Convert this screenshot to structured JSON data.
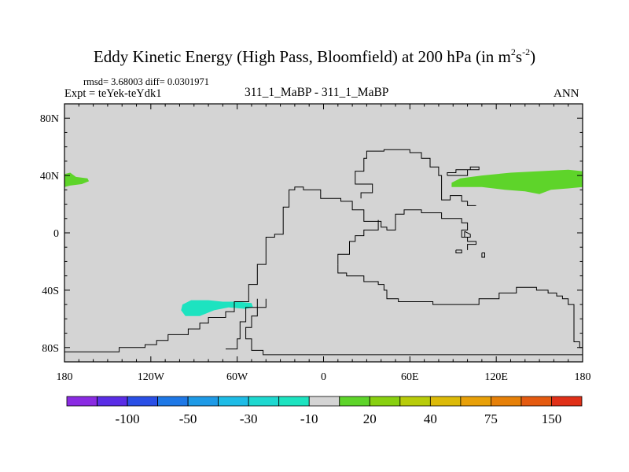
{
  "title": {
    "main": "Eddy Kinetic Energy (High Pass, Bloomfield) at 200 hPa (in m",
    "sup1": "2",
    "mid": "s",
    "sup2": "-2",
    "end": ")"
  },
  "header": {
    "rmsd": "rmsd= 3.68003 diff= 0.0301971",
    "expt": "Expt = teYek-teYdk1",
    "cases": "311_1_MaBP - 311_1_MaBP",
    "season": "ANN"
  },
  "colors": {
    "background_fill": "#d4d4d4",
    "positive_contour": "#5ed42a",
    "negative_contour": "#1de3c0",
    "outline": "#000000"
  },
  "chart_data": {
    "type": "contour_map",
    "projection": "cylindrical-equidistant",
    "xlim": [
      -180,
      180
    ],
    "ylim": [
      -90,
      90
    ],
    "xticks": [
      {
        "value": -180,
        "label": "180"
      },
      {
        "value": -120,
        "label": "120W"
      },
      {
        "value": -60,
        "label": "60W"
      },
      {
        "value": 0,
        "label": "0"
      },
      {
        "value": 60,
        "label": "60E"
      },
      {
        "value": 120,
        "label": "120E"
      },
      {
        "value": 180,
        "label": "180"
      }
    ],
    "yticks": [
      {
        "value": 80,
        "label": "80N"
      },
      {
        "value": 40,
        "label": "40N"
      },
      {
        "value": 0,
        "label": "0"
      },
      {
        "value": -40,
        "label": "40S"
      },
      {
        "value": -80,
        "label": "80S"
      }
    ],
    "colorbar": {
      "colors": [
        "#8a2be2",
        "#5a2de6",
        "#2a4fe6",
        "#1e78e6",
        "#1e9ae6",
        "#1ebce6",
        "#1ed8d0",
        "#1de3c0",
        "#d4d4d4",
        "#5ed42a",
        "#88d010",
        "#b8cc0a",
        "#dcba08",
        "#e8a008",
        "#e68008",
        "#e45a10",
        "#e03018"
      ],
      "labels": [
        {
          "after_index": 1,
          "text": "-100"
        },
        {
          "after_index": 3,
          "text": "-50"
        },
        {
          "after_index": 5,
          "text": "-30"
        },
        {
          "after_index": 7,
          "text": "-10"
        },
        {
          "after_index": 9,
          "text": "20"
        },
        {
          "after_index": 11,
          "text": "40"
        },
        {
          "after_index": 13,
          "text": "75"
        },
        {
          "after_index": 15,
          "text": "150"
        }
      ]
    },
    "filled_regions": [
      {
        "name": "positive-region-west",
        "color_index": 9,
        "lonlat": [
          [
            -180,
            41
          ],
          [
            -176,
            42
          ],
          [
            -172,
            39
          ],
          [
            -164,
            38
          ],
          [
            -163,
            36
          ],
          [
            -168,
            34
          ],
          [
            -176,
            33
          ],
          [
            -180,
            32
          ]
        ]
      },
      {
        "name": "positive-region-east",
        "color_index": 9,
        "lonlat": [
          [
            89,
            35
          ],
          [
            95,
            38
          ],
          [
            110,
            40
          ],
          [
            130,
            42
          ],
          [
            150,
            43
          ],
          [
            170,
            44
          ],
          [
            180,
            43
          ],
          [
            180,
            32
          ],
          [
            170,
            31
          ],
          [
            158,
            30
          ],
          [
            150,
            27
          ],
          [
            140,
            29
          ],
          [
            126,
            30
          ],
          [
            110,
            32
          ],
          [
            95,
            32
          ],
          [
            89,
            32
          ]
        ]
      },
      {
        "name": "negative-region-south",
        "color_index": 7,
        "lonlat": [
          [
            -98,
            -50
          ],
          [
            -92,
            -47
          ],
          [
            -80,
            -47
          ],
          [
            -70,
            -48
          ],
          [
            -60,
            -48
          ],
          [
            -50,
            -49
          ],
          [
            -49,
            -52
          ],
          [
            -54,
            -53
          ],
          [
            -66,
            -52
          ],
          [
            -76,
            -54
          ],
          [
            -86,
            -58
          ],
          [
            -96,
            -58
          ],
          [
            -99,
            -54
          ]
        ]
      }
    ],
    "land_outlines": [
      {
        "name": "coastline-main",
        "lonlat": [
          [
            -180,
            -83
          ],
          [
            -142,
            -83
          ],
          [
            -142,
            -80
          ],
          [
            -124,
            -80
          ],
          [
            -124,
            -78
          ],
          [
            -116,
            -78
          ],
          [
            -116,
            -75
          ],
          [
            -108,
            -75
          ],
          [
            -108,
            -71
          ],
          [
            -94,
            -71
          ],
          [
            -94,
            -67
          ],
          [
            -86,
            -67
          ],
          [
            -86,
            -63
          ],
          [
            -80,
            -63
          ],
          [
            -80,
            -59
          ],
          [
            -68,
            -59
          ],
          [
            -68,
            -55
          ],
          [
            -62,
            -55
          ],
          [
            -62,
            -48
          ],
          [
            -52,
            -48
          ],
          [
            -52,
            -36
          ],
          [
            -46,
            -36
          ],
          [
            -46,
            -22
          ],
          [
            -40,
            -22
          ],
          [
            -40,
            -3
          ],
          [
            -34,
            -3
          ],
          [
            -34,
            -1
          ],
          [
            -28,
            -1
          ],
          [
            -28,
            18
          ],
          [
            -24,
            18
          ],
          [
            -24,
            30
          ],
          [
            -20,
            30
          ],
          [
            -20,
            32
          ],
          [
            -14,
            32
          ],
          [
            -14,
            30
          ],
          [
            -2,
            30
          ],
          [
            -2,
            24
          ],
          [
            12,
            24
          ],
          [
            12,
            22
          ],
          [
            20,
            22
          ],
          [
            20,
            16
          ],
          [
            28,
            16
          ],
          [
            28,
            8
          ],
          [
            40,
            8
          ],
          [
            40,
            4
          ],
          [
            44,
            4
          ],
          [
            44,
            2
          ],
          [
            50,
            2
          ],
          [
            50,
            13
          ],
          [
            56,
            13
          ],
          [
            56,
            16
          ],
          [
            68,
            16
          ],
          [
            68,
            14
          ],
          [
            82,
            14
          ],
          [
            82,
            10
          ],
          [
            96,
            10
          ],
          [
            96,
            7
          ],
          [
            100,
            7
          ],
          [
            100,
            2
          ],
          [
            96,
            2
          ],
          [
            96,
            -3
          ],
          [
            100,
            -3
          ],
          [
            100,
            -6
          ],
          [
            106,
            -6
          ],
          [
            106,
            -8
          ],
          [
            100,
            -8
          ],
          [
            100,
            -12
          ]
        ]
      },
      {
        "name": "coastline-africa-west",
        "lonlat": [
          [
            10,
            -22
          ],
          [
            10,
            -15
          ],
          [
            18,
            -15
          ],
          [
            18,
            -6
          ],
          [
            22,
            -6
          ],
          [
            22,
            -2
          ],
          [
            28,
            -2
          ],
          [
            28,
            2
          ],
          [
            38,
            2
          ],
          [
            38,
            9
          ]
        ]
      },
      {
        "name": "coastline-north",
        "lonlat": [
          [
            26,
            24
          ],
          [
            26,
            28
          ],
          [
            34,
            28
          ],
          [
            34,
            34
          ],
          [
            22,
            34
          ],
          [
            22,
            43
          ],
          [
            28,
            43
          ],
          [
            28,
            52
          ],
          [
            30,
            52
          ],
          [
            30,
            57
          ],
          [
            42,
            57
          ],
          [
            42,
            58
          ],
          [
            60,
            58
          ],
          [
            60,
            56
          ],
          [
            68,
            56
          ],
          [
            68,
            52
          ],
          [
            74,
            52
          ],
          [
            74,
            46
          ],
          [
            80,
            46
          ],
          [
            80,
            40
          ],
          [
            82,
            40
          ],
          [
            82,
            23
          ],
          [
            88,
            23
          ],
          [
            88,
            26
          ],
          [
            96,
            26
          ],
          [
            96,
            22
          ],
          [
            100,
            22
          ],
          [
            100,
            19
          ],
          [
            106,
            19
          ]
        ]
      },
      {
        "name": "coastline-southern",
        "lonlat": [
          [
            10,
            -22
          ],
          [
            10,
            -28
          ],
          [
            16,
            -28
          ],
          [
            16,
            -30
          ],
          [
            28,
            -30
          ],
          [
            28,
            -34
          ],
          [
            38,
            -34
          ],
          [
            38,
            -36
          ],
          [
            42,
            -36
          ],
          [
            42,
            -40
          ],
          [
            44,
            -40
          ],
          [
            44,
            -46
          ],
          [
            52,
            -46
          ],
          [
            52,
            -48
          ],
          [
            76,
            -48
          ],
          [
            76,
            -50
          ],
          [
            108,
            -50
          ],
          [
            108,
            -46
          ],
          [
            122,
            -46
          ],
          [
            122,
            -42
          ],
          [
            134,
            -42
          ],
          [
            134,
            -38
          ],
          [
            148,
            -38
          ],
          [
            148,
            -40
          ],
          [
            156,
            -40
          ],
          [
            156,
            -42
          ],
          [
            162,
            -42
          ],
          [
            162,
            -44
          ],
          [
            166,
            -44
          ],
          [
            166,
            -46
          ],
          [
            170,
            -46
          ],
          [
            170,
            -50
          ],
          [
            174,
            -50
          ],
          [
            174,
            -76
          ],
          [
            178,
            -76
          ],
          [
            178,
            -80
          ],
          [
            180,
            -80
          ]
        ]
      },
      {
        "name": "coastline-southwest",
        "lonlat": [
          [
            -40,
            -46
          ],
          [
            -40,
            -52
          ],
          [
            -46,
            -52
          ],
          [
            -46,
            -58
          ],
          [
            -50,
            -58
          ],
          [
            -50,
            -66
          ],
          [
            -54,
            -66
          ],
          [
            -54,
            -74
          ],
          [
            -50,
            -74
          ],
          [
            -50,
            -82
          ],
          [
            -42,
            -82
          ],
          [
            -42,
            -85
          ],
          [
            180,
            -85
          ]
        ]
      },
      {
        "name": "coastline-bay",
        "lonlat": [
          [
            -46,
            -46
          ],
          [
            -46,
            -52
          ],
          [
            -54,
            -52
          ],
          [
            -54,
            -62
          ],
          [
            -58,
            -62
          ],
          [
            -58,
            -74
          ],
          [
            -60,
            -74
          ],
          [
            -60,
            -81
          ],
          [
            -68,
            -81
          ]
        ]
      },
      {
        "name": "island-north",
        "lonlat": [
          [
            86,
            40
          ],
          [
            86,
            42
          ],
          [
            92,
            42
          ],
          [
            92,
            44
          ],
          [
            102,
            44
          ],
          [
            102,
            46
          ],
          [
            108,
            46
          ],
          [
            108,
            44
          ],
          [
            100,
            44
          ],
          [
            100,
            40
          ],
          [
            86,
            40
          ]
        ]
      },
      {
        "name": "island-small-a",
        "lonlat": [
          [
            98,
            1
          ],
          [
            98,
            -3
          ],
          [
            102,
            -3
          ],
          [
            102,
            -1
          ],
          [
            98,
            1
          ]
        ]
      },
      {
        "name": "island-small-b",
        "lonlat": [
          [
            92,
            -12
          ],
          [
            92,
            -14
          ],
          [
            96,
            -14
          ],
          [
            96,
            -12
          ],
          [
            92,
            -12
          ]
        ]
      },
      {
        "name": "island-small-c",
        "lonlat": [
          [
            110,
            -14
          ],
          [
            110,
            -17
          ],
          [
            112,
            -17
          ],
          [
            112,
            -14
          ],
          [
            110,
            -14
          ]
        ]
      }
    ]
  }
}
